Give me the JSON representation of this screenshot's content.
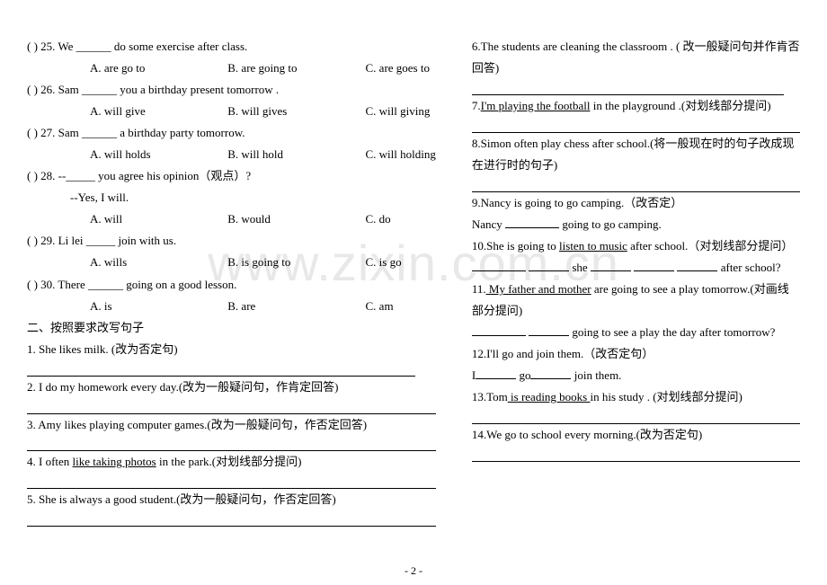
{
  "watermark": "www.zixin.com.cn",
  "footer": "- 2 -",
  "left": {
    "q25": {
      "line": "(       ) 25. We ______ do some exercise after class.",
      "a": "A. are go to",
      "b": "B. are going to",
      "c": "C. are goes to"
    },
    "q26": {
      "line": "(       ) 26. Sam ______ you a birthday present tomorrow .",
      "a": "A. will give",
      "b": "B. will gives",
      "c": "C. will giving"
    },
    "q27": {
      "line": "(       ) 27. Sam ______ a birthday party tomorrow.",
      "a": "A. will holds",
      "b": "B. will hold",
      "c": "C. will holding"
    },
    "q28": {
      "line": "(       ) 28. --_____ you agree his opinion（观点）?",
      "sub": "--Yes, I will.",
      "a": "A. will",
      "b": "B. would",
      "c": "C. do"
    },
    "q29": {
      "line": "(       ) 29. Li lei _____ join with us.",
      "a": "A. wills",
      "b": "B. is going to",
      "c": "C. is go"
    },
    "q30": {
      "line": "(       ) 30. There ______ going on a good lesson.",
      "a": "A. is",
      "b": "B. are",
      "c": "C. am"
    },
    "section2": "二、按照要求改写句子",
    "s1": "1. She likes milk. (改为否定句)",
    "s2": "2. I do my homework every day.(改为一般疑问句，作肯定回答)",
    "s3": "3. Amy likes playing computer games.(改为一般疑问句，作否定回答)",
    "s4_a": "4. I often ",
    "s4_u": "like taking photos",
    "s4_b": " in the park.(对划线部分提问)",
    "s5": "5. She is always a good student.(改为一般疑问句，作否定回答)"
  },
  "right": {
    "s6": "6.The students are cleaning the classroom . ( 改一般疑问句并作肯否回答)",
    "s7_a": "7.",
    "s7_u": "I'm playing the football",
    "s7_b": " in the playground .(对划线部分提问)",
    "s8": "8.Simon often play chess after school.(将一般现在时的句子改成现在进行时的句子)",
    "s9a": "9.Nancy is going to go camping.（改否定）",
    "s9b_a": "  Nancy ",
    "s9b_b": " going to go camping.",
    "s10a_a": "10.She is going to ",
    "s10a_u": "listen to music",
    "s10a_b": " after school.（对划线部分提问）",
    "s10b_a": " she ",
    "s10b_b": " after school?",
    "s11_a": "11.",
    "s11_u": " My father and mother",
    "s11_b": " are going to see a play tomorrow.(对画线部分提问)",
    "s11c": " going to see a play the day after tomorrow?",
    "s12a": "12.I'll go and join them.（改否定句）",
    "s12b_a": "   I",
    "s12b_b": " go",
    "s12b_c": " join them.",
    "s13_a": "13.Tom",
    "s13_u": " is reading books ",
    "s13_b": "in his study . (对划线部分提问)",
    "s14": "14.We go to school every morning.(改为否定句)"
  }
}
